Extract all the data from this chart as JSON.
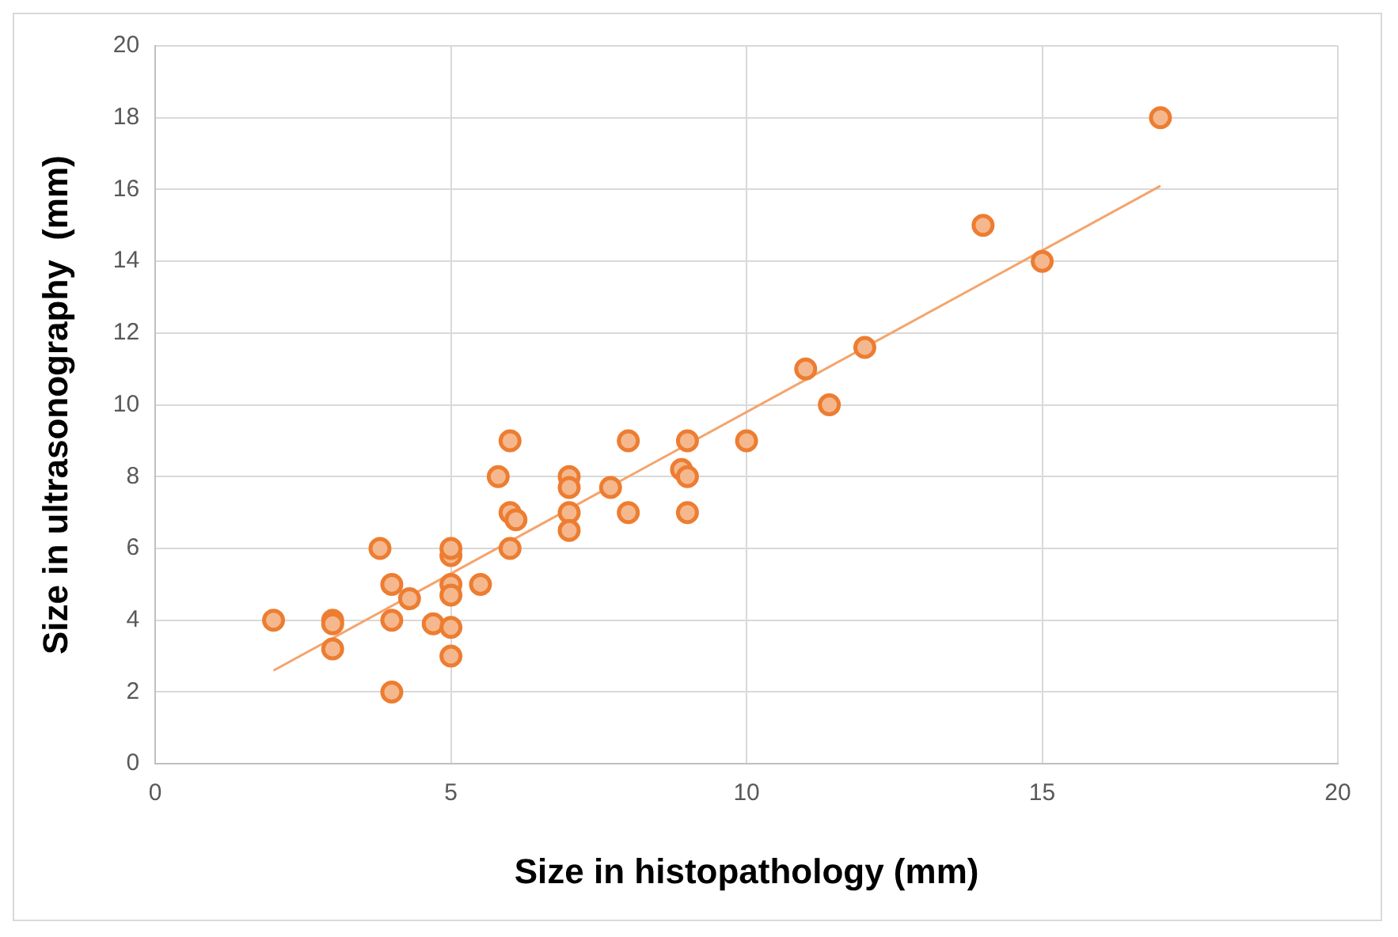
{
  "chart_data": {
    "type": "scatter",
    "xlabel": "Size in histopathology (mm)",
    "ylabel": "Size in ultrasonography  (mm)",
    "xlim": [
      0,
      20
    ],
    "xticks": [
      0,
      5,
      10,
      15,
      20
    ],
    "ylim": [
      0,
      20
    ],
    "yticks": [
      0,
      2,
      4,
      6,
      8,
      10,
      12,
      14,
      16,
      18,
      20
    ],
    "grid": true,
    "legend": false,
    "marker": "circle",
    "series": [
      {
        "color": "#ed7d31",
        "x": [
          2,
          3,
          3,
          3,
          4,
          4,
          4,
          3.8,
          4.3,
          4.7,
          5,
          5,
          5,
          5,
          5,
          5,
          5.5,
          5.8,
          6,
          6,
          6.1,
          6,
          7,
          7,
          7,
          7,
          7.7,
          8,
          8,
          8.9,
          9,
          9,
          9,
          10,
          11,
          11.4,
          12,
          14,
          15,
          17
        ],
        "values": [
          4,
          4,
          3.9,
          3.2,
          5,
          4,
          2,
          6,
          4.6,
          3.9,
          5,
          4.7,
          5.8,
          6,
          3.8,
          3,
          5,
          8,
          9,
          7,
          6.8,
          6,
          8,
          7.7,
          7,
          6.5,
          7.7,
          9,
          7,
          8.2,
          9,
          8,
          7,
          9,
          11,
          10,
          11.6,
          15,
          14,
          18
        ]
      },
      {
        "type": "line",
        "color": "#f4a46c",
        "x": [
          2,
          17
        ],
        "values": [
          2.6,
          16.1
        ],
        "marker": "none"
      }
    ]
  }
}
